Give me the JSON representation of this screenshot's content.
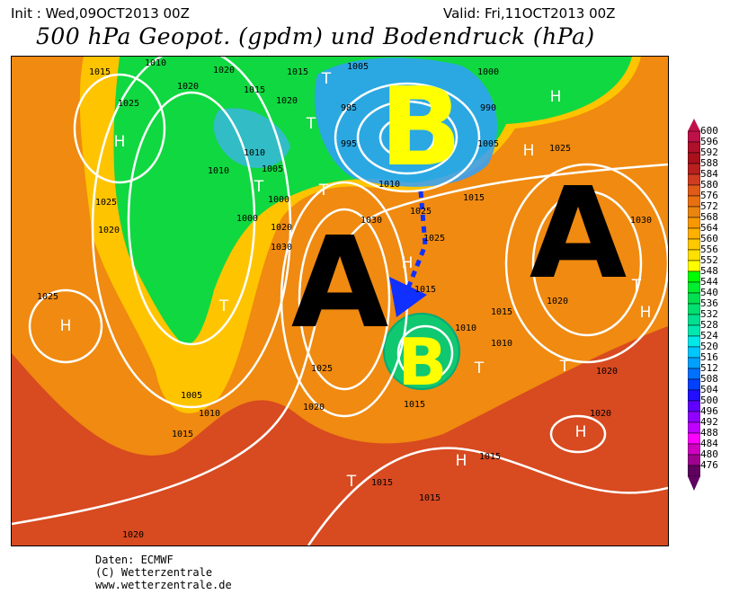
{
  "header": {
    "init": "Init : Wed,09OCT2013 00Z",
    "valid": "Valid: Fri,11OCT2013 00Z",
    "title": "500 hPa Geopot. (gpdm) und Bodendruck (hPa)"
  },
  "map": {
    "big_labels": [
      "B",
      "A",
      "A",
      "B"
    ],
    "big_label_colors": {
      "B": "#ffff00",
      "A": "#000000"
    },
    "markers": [
      "H",
      "H",
      "H",
      "H",
      "H",
      "H",
      "H",
      "H",
      "T",
      "T",
      "T",
      "T",
      "T",
      "T",
      "T",
      "T",
      "T"
    ],
    "isobar_labels": [
      "1015",
      "1010",
      "1020",
      "1020",
      "1015",
      "1025",
      "1020",
      "1015",
      "1005",
      "1000",
      "985",
      "990",
      "995",
      "1005",
      "1010",
      "1015",
      "1010",
      "1005",
      "1000",
      "1000",
      "1010",
      "1025",
      "1020",
      "1020",
      "1030",
      "1025",
      "1025",
      "1025",
      "1030",
      "1030",
      "1025",
      "1020",
      "1015",
      "1010",
      "1005",
      "1010",
      "1015",
      "1020",
      "1025",
      "1015",
      "1020",
      "1020",
      "1015",
      "1015",
      "1015",
      "1020",
      "1010",
      "1015"
    ],
    "colors": {
      "background": "#d84a20",
      "orange": "#f08a10",
      "yellow": "#ffe000",
      "green": "#00e040",
      "blue": "#2080ff",
      "isobar": "#ffffff",
      "arrow": "#1030ff"
    }
  },
  "colorbar": {
    "labels": [
      "600",
      "596",
      "592",
      "588",
      "584",
      "580",
      "576",
      "572",
      "568",
      "564",
      "560",
      "556",
      "552",
      "548",
      "544",
      "540",
      "536",
      "532",
      "528",
      "524",
      "520",
      "516",
      "512",
      "508",
      "504",
      "500",
      "496",
      "492",
      "488",
      "484",
      "480",
      "476"
    ],
    "colors": [
      "#c0104a",
      "#b0102a",
      "#a8101c",
      "#b82020",
      "#d03c20",
      "#e05a18",
      "#e87010",
      "#e88410",
      "#f89800",
      "#ffb000",
      "#ffc800",
      "#ffe000",
      "#ffff00",
      "#00ff00",
      "#00ee30",
      "#00e050",
      "#00e070",
      "#00e090",
      "#00e8b0",
      "#00e8e8",
      "#00c8ff",
      "#00a0ff",
      "#0070ff",
      "#0040ff",
      "#2010ff",
      "#6000ff",
      "#9000ff",
      "#c000ff",
      "#ff00ff",
      "#d000c0",
      "#a00090",
      "#600060"
    ]
  },
  "footer": {
    "source": "Daten: ECMWF",
    "copyright": "(C) Wetterzentrale",
    "url": "www.wetterzentrale.de"
  }
}
